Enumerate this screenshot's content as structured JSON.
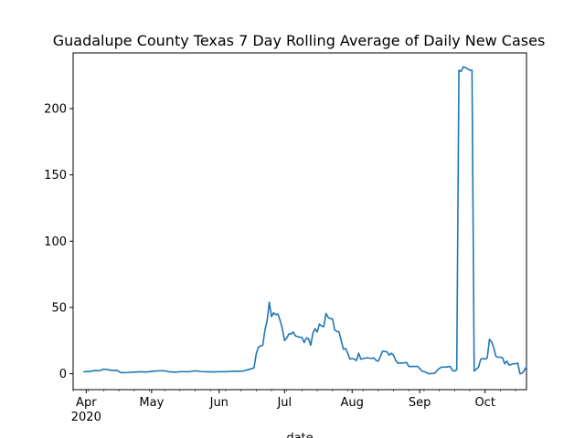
{
  "chart_data": {
    "type": "line",
    "title": "Guadalupe County Texas 7 Day Rolling Average of Daily New Cases",
    "xlabel": "date",
    "ylabel": "",
    "ylim": [
      -12,
      242
    ],
    "xlim": [
      "2020-03-26",
      "2020-10-20"
    ],
    "grid": false,
    "legend": "none",
    "line_color": "#1f77b4",
    "y_ticks": [
      0,
      50,
      100,
      150,
      200
    ],
    "x_ticks": [
      {
        "date": "2020-04-01",
        "label": "Apr",
        "sublabel": "2020"
      },
      {
        "date": "2020-05-01",
        "label": "May",
        "sublabel": ""
      },
      {
        "date": "2020-06-01",
        "label": "Jun",
        "sublabel": ""
      },
      {
        "date": "2020-07-01",
        "label": "Jul",
        "sublabel": ""
      },
      {
        "date": "2020-08-01",
        "label": "Aug",
        "sublabel": ""
      },
      {
        "date": "2020-09-01",
        "label": "Sep",
        "sublabel": ""
      },
      {
        "date": "2020-10-01",
        "label": "Oct",
        "sublabel": ""
      }
    ],
    "series": [
      {
        "points": [
          [
            "2020-03-31",
            1.5
          ],
          [
            "2020-04-03",
            1.8
          ],
          [
            "2020-04-05",
            2.5
          ],
          [
            "2020-04-07",
            2.2
          ],
          [
            "2020-04-09",
            3.5
          ],
          [
            "2020-04-11",
            3.0
          ],
          [
            "2020-04-13",
            2.5
          ],
          [
            "2020-04-15",
            2.6
          ],
          [
            "2020-04-17",
            0.8
          ],
          [
            "2020-04-20",
            0.9
          ],
          [
            "2020-04-23",
            1.2
          ],
          [
            "2020-04-26",
            1.5
          ],
          [
            "2020-04-29",
            1.3
          ],
          [
            "2020-05-01",
            1.8
          ],
          [
            "2020-05-04",
            2.2
          ],
          [
            "2020-05-07",
            2.2
          ],
          [
            "2020-05-09",
            1.5
          ],
          [
            "2020-05-12",
            1.2
          ],
          [
            "2020-05-15",
            1.6
          ],
          [
            "2020-05-18",
            1.5
          ],
          [
            "2020-05-21",
            2.2
          ],
          [
            "2020-05-24",
            1.6
          ],
          [
            "2020-05-27",
            1.5
          ],
          [
            "2020-05-30",
            1.4
          ],
          [
            "2020-06-02",
            1.6
          ],
          [
            "2020-06-04",
            1.5
          ],
          [
            "2020-06-06",
            1.8
          ],
          [
            "2020-06-09",
            1.9
          ],
          [
            "2020-06-12",
            2.0
          ],
          [
            "2020-06-14",
            3.0
          ],
          [
            "2020-06-16",
            3.8
          ],
          [
            "2020-06-17",
            4.5
          ],
          [
            "2020-06-18",
            15.0
          ],
          [
            "2020-06-19",
            20.0
          ],
          [
            "2020-06-20",
            21.0
          ],
          [
            "2020-06-21",
            21.5
          ],
          [
            "2020-06-22",
            33.0
          ],
          [
            "2020-06-23",
            40.0
          ],
          [
            "2020-06-24",
            54.0
          ],
          [
            "2020-06-25",
            43.0
          ],
          [
            "2020-06-26",
            46.0
          ],
          [
            "2020-06-27",
            44.5
          ],
          [
            "2020-06-28",
            45.0
          ],
          [
            "2020-06-29",
            40.0
          ],
          [
            "2020-06-30",
            34.0
          ],
          [
            "2020-07-01",
            25.0
          ],
          [
            "2020-07-02",
            27.0
          ],
          [
            "2020-07-03",
            30.0
          ],
          [
            "2020-07-04",
            30.0
          ],
          [
            "2020-07-05",
            31.5
          ],
          [
            "2020-07-06",
            28.5
          ],
          [
            "2020-07-07",
            28.0
          ],
          [
            "2020-07-08",
            27.5
          ],
          [
            "2020-07-09",
            27.5
          ],
          [
            "2020-07-10",
            23.5
          ],
          [
            "2020-07-11",
            27.0
          ],
          [
            "2020-07-12",
            26.5
          ],
          [
            "2020-07-13",
            21.5
          ],
          [
            "2020-07-14",
            30.5
          ],
          [
            "2020-07-15",
            34.0
          ],
          [
            "2020-07-16",
            31.5
          ],
          [
            "2020-07-17",
            37.5
          ],
          [
            "2020-07-18",
            36.0
          ],
          [
            "2020-07-19",
            35.5
          ],
          [
            "2020-07-20",
            45.5
          ],
          [
            "2020-07-21",
            42.5
          ],
          [
            "2020-07-22",
            41.5
          ],
          [
            "2020-07-23",
            41.5
          ],
          [
            "2020-07-24",
            33.0
          ],
          [
            "2020-07-25",
            32.0
          ],
          [
            "2020-07-26",
            31.5
          ],
          [
            "2020-07-27",
            25.0
          ],
          [
            "2020-07-28",
            18.5
          ],
          [
            "2020-07-29",
            19.0
          ],
          [
            "2020-07-30",
            15.5
          ],
          [
            "2020-07-31",
            11.0
          ],
          [
            "2020-08-01",
            11.5
          ],
          [
            "2020-08-02",
            11.0
          ],
          [
            "2020-08-03",
            10.0
          ],
          [
            "2020-08-04",
            15.5
          ],
          [
            "2020-08-05",
            11.0
          ],
          [
            "2020-08-06",
            11.5
          ],
          [
            "2020-08-08",
            12.0
          ],
          [
            "2020-08-10",
            11.5
          ],
          [
            "2020-08-11",
            12.0
          ],
          [
            "2020-08-12",
            10.0
          ],
          [
            "2020-08-13",
            9.5
          ],
          [
            "2020-08-15",
            17.0
          ],
          [
            "2020-08-17",
            16.5
          ],
          [
            "2020-08-18",
            14.0
          ],
          [
            "2020-08-19",
            15.5
          ],
          [
            "2020-08-20",
            14.0
          ],
          [
            "2020-08-21",
            10.0
          ],
          [
            "2020-08-22",
            8.0
          ],
          [
            "2020-08-24",
            8.0
          ],
          [
            "2020-08-26",
            8.5
          ],
          [
            "2020-08-27",
            5.5
          ],
          [
            "2020-08-29",
            5.5
          ],
          [
            "2020-08-31",
            5.5
          ],
          [
            "2020-09-01",
            4.0
          ],
          [
            "2020-09-02",
            2.0
          ],
          [
            "2020-09-04",
            1.0
          ],
          [
            "2020-09-05",
            0.0
          ],
          [
            "2020-09-07",
            0.2
          ],
          [
            "2020-09-08",
            0.5
          ],
          [
            "2020-09-09",
            2.5
          ],
          [
            "2020-09-10",
            4.0
          ],
          [
            "2020-09-11",
            5.0
          ],
          [
            "2020-09-13",
            5.0
          ],
          [
            "2020-09-15",
            5.5
          ],
          [
            "2020-09-16",
            2.5
          ],
          [
            "2020-09-17",
            2.0
          ],
          [
            "2020-09-18",
            3.0
          ],
          [
            "2020-09-19",
            229.0
          ],
          [
            "2020-09-20",
            228.0
          ],
          [
            "2020-09-21",
            231.5
          ],
          [
            "2020-09-22",
            231.0
          ],
          [
            "2020-09-23",
            230.0
          ],
          [
            "2020-09-24",
            229.0
          ],
          [
            "2020-09-25",
            229.0
          ],
          [
            "2020-09-26",
            2.0
          ],
          [
            "2020-09-27",
            3.5
          ],
          [
            "2020-09-28",
            5.0
          ],
          [
            "2020-09-29",
            11.0
          ],
          [
            "2020-09-30",
            11.5
          ],
          [
            "2020-10-01",
            11.0
          ],
          [
            "2020-10-02",
            12.0
          ],
          [
            "2020-10-03",
            26.0
          ],
          [
            "2020-10-04",
            24.0
          ],
          [
            "2020-10-05",
            19.5
          ],
          [
            "2020-10-06",
            13.0
          ],
          [
            "2020-10-07",
            12.5
          ],
          [
            "2020-10-08",
            12.5
          ],
          [
            "2020-10-09",
            12.0
          ],
          [
            "2020-10-10",
            7.5
          ],
          [
            "2020-10-11",
            9.5
          ],
          [
            "2020-10-12",
            6.5
          ],
          [
            "2020-10-13",
            7.0
          ],
          [
            "2020-10-14",
            7.5
          ],
          [
            "2020-10-15",
            7.5
          ],
          [
            "2020-10-16",
            8.0
          ],
          [
            "2020-10-17",
            0.0
          ],
          [
            "2020-10-18",
            0.5
          ],
          [
            "2020-10-19",
            2.5
          ],
          [
            "2020-10-20",
            5.5
          ]
        ]
      }
    ]
  }
}
